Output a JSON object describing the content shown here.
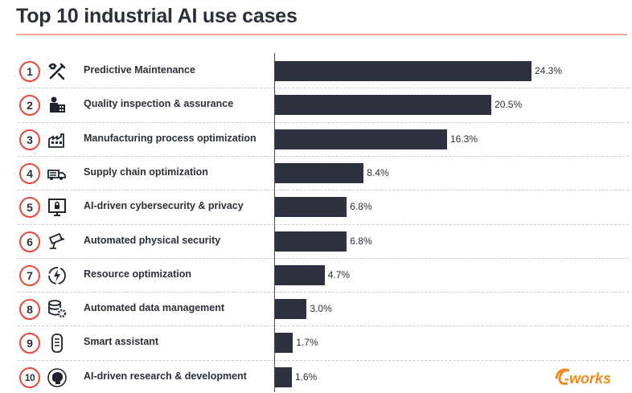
{
  "title": "Top 10 industrial AI use cases",
  "colors": {
    "bar": "#2e3240",
    "accent": "#e8473a",
    "rule": "#f2a79a"
  },
  "chart_data": {
    "type": "bar",
    "orientation": "horizontal",
    "title": "Top 10 industrial AI use cases",
    "categories": [
      "Predictive Maintenance",
      "Quality inspection & assurance",
      "Manufacturing process optimization",
      "Supply chain optimization",
      "AI-driven cybersecurity & privacy",
      "Automated physical security",
      "Resource optimization",
      "Automated data management",
      "Smart assistant",
      "AI-driven research & development"
    ],
    "values": [
      24.3,
      20.5,
      16.3,
      8.4,
      6.8,
      6.8,
      4.7,
      3.0,
      1.7,
      1.6
    ],
    "value_labels": [
      "24.3%",
      "20.5%",
      "16.3%",
      "8.4%",
      "6.8%",
      "6.8%",
      "4.7%",
      "3.0%",
      "1.7%",
      "1.6%"
    ],
    "ranks": [
      "1",
      "2",
      "3",
      "4",
      "5",
      "6",
      "7",
      "8",
      "9",
      "10"
    ],
    "icons": [
      "tools-icon",
      "inspector-icon",
      "factory-icon",
      "truck-icon",
      "secure-monitor-icon",
      "security-camera-icon",
      "energy-cycle-icon",
      "database-gear-icon",
      "assistant-icon",
      "brain-icon"
    ],
    "grid": false
  },
  "logo": {
    "text": "e-works"
  }
}
